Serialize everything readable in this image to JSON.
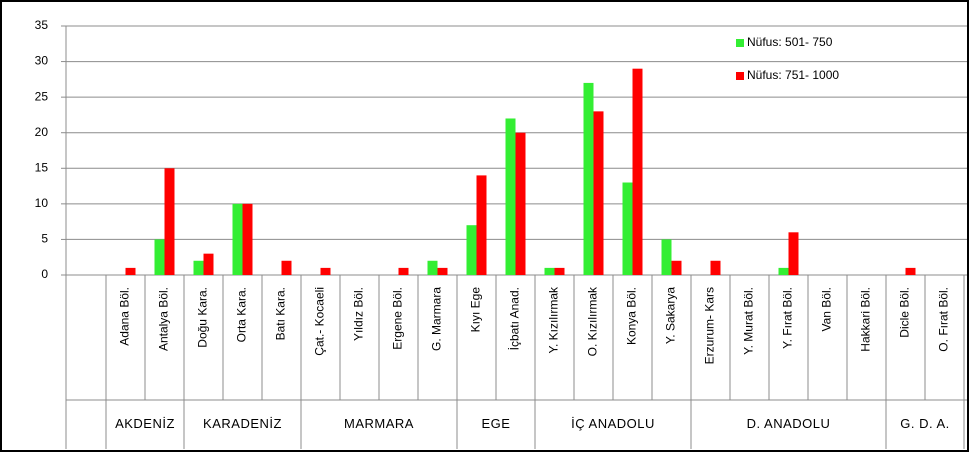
{
  "chart_data": {
    "type": "bar",
    "groups": [
      {
        "label": "AKDENİZ",
        "categories": [
          "Adana Böl.",
          "Antalya Böl."
        ]
      },
      {
        "label": "KARADENİZ",
        "categories": [
          "Doğu Kara.",
          "Orta Kara.",
          "Batı Kara."
        ]
      },
      {
        "label": "MARMARA",
        "categories": [
          "Çat.- Kocaeli",
          "Yıldız Böl.",
          "Ergene Böl.",
          "G. Marmara"
        ]
      },
      {
        "label": "EGE",
        "categories": [
          "Kıyı Ege",
          "İçbatı Anad."
        ]
      },
      {
        "label": "İÇ ANADOLU",
        "categories": [
          "Y. Kızılırmak",
          "O. Kızılırmak",
          "Konya Böl.",
          "Y. Sakarya"
        ]
      },
      {
        "label": "D. ANADOLU",
        "categories": [
          "Erzurum- Kars",
          "Y. Murat Böl.",
          "Y. Fırat Böl.",
          "Van Böl.",
          "Hakkari Böl."
        ]
      },
      {
        "label": "G. D. A.",
        "categories": [
          "Dicle Böl.",
          "O. Fırat Böl."
        ]
      }
    ],
    "series": [
      {
        "name": "Nüfus: 501- 750",
        "color": "#33ee33",
        "values": [
          0,
          5,
          2,
          10,
          0,
          0,
          0,
          0,
          2,
          7,
          22,
          1,
          27,
          13,
          5,
          0,
          0,
          1,
          0,
          0,
          0,
          0
        ]
      },
      {
        "name": "Nüfus: 751- 1000",
        "color": "#ff0000",
        "values": [
          1,
          15,
          3,
          10,
          2,
          1,
          0,
          1,
          1,
          14,
          20,
          1,
          23,
          29,
          2,
          2,
          0,
          6,
          0,
          0,
          1,
          0
        ]
      }
    ],
    "ylim": [
      0,
      35
    ],
    "yticks": [
      0,
      5,
      10,
      15,
      20,
      25,
      30,
      35
    ],
    "grid": true,
    "legend": "top-right"
  }
}
